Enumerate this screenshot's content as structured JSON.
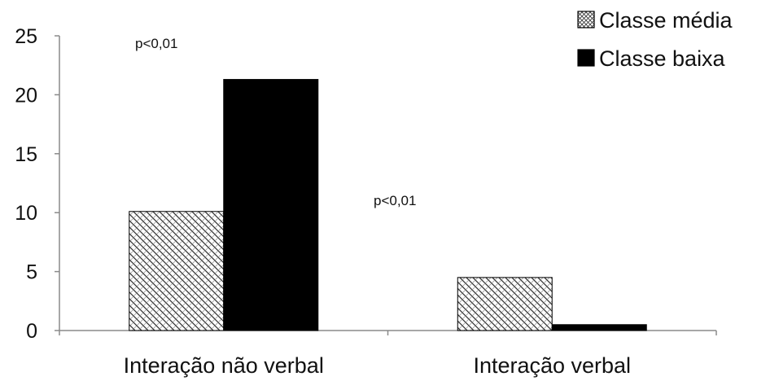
{
  "chart_data": {
    "type": "bar",
    "categories": [
      "Interação não verbal",
      "Interação verbal"
    ],
    "series": [
      {
        "name": "Classe média",
        "values": [
          10.1,
          4.5
        ],
        "pattern": "hatch"
      },
      {
        "name": "Classe baixa",
        "values": [
          21.3,
          0.5
        ],
        "pattern": "solid"
      }
    ],
    "ylim": [
      0,
      25
    ],
    "yticks": [
      "0",
      "5",
      "10",
      "15",
      "20",
      "25"
    ],
    "ytick_values": [
      0,
      5,
      10,
      15,
      20,
      25
    ],
    "legend_position": "top-right",
    "grid": false,
    "annotations": [
      {
        "text": "p<0,01",
        "category_index": 0
      },
      {
        "text": "p<0,01",
        "category_index": 1
      }
    ],
    "colors": {
      "axis": "#8a8a8a",
      "solid": "#000000",
      "hatch_line": "#333333",
      "hatch_bg": "#ffffff"
    }
  }
}
